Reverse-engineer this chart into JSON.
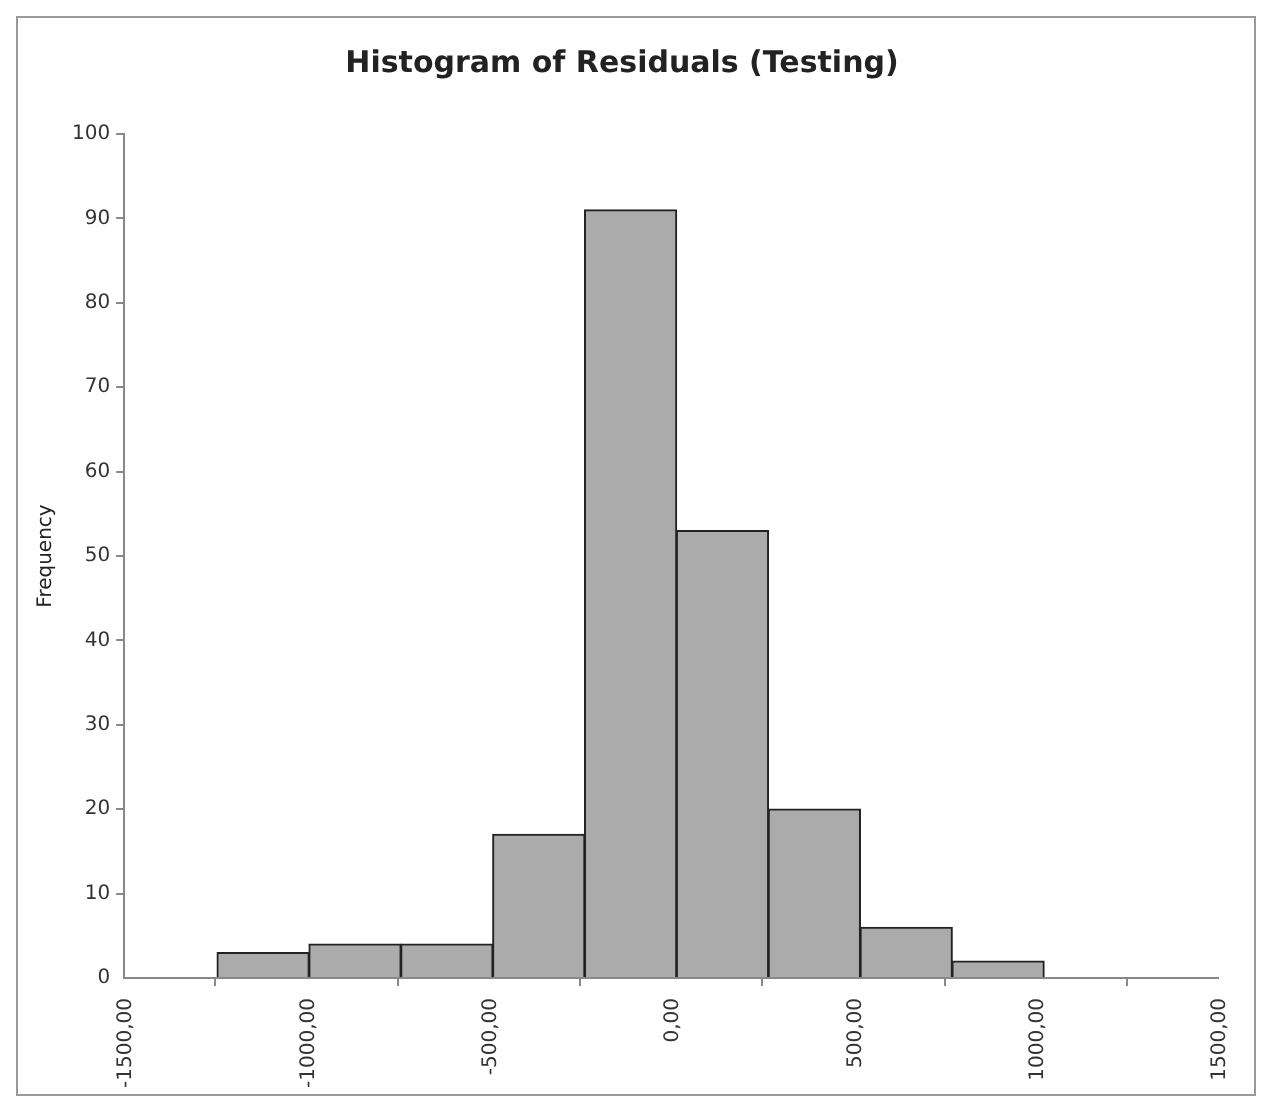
{
  "chart_data": {
    "type": "histogram",
    "title": "Histogram of Residuals (Testing)",
    "ylabel": "Frequency",
    "bins": [
      -1245,
      -993,
      -741,
      -489,
      -237,
      15,
      267,
      519,
      771,
      1023
    ],
    "values": [
      3,
      4,
      4,
      17,
      91,
      53,
      20,
      6,
      2
    ],
    "color": "#ababab",
    "xlim": [
      -1500,
      1500
    ],
    "xticks": [
      {
        "value": -1500,
        "label": "-1500,00"
      },
      {
        "value": -1000,
        "label": "-1000,00"
      },
      {
        "value": -500,
        "label": "-500,00"
      },
      {
        "value": 0,
        "label": "0,00"
      },
      {
        "value": 500,
        "label": "500,00"
      },
      {
        "value": 1000,
        "label": "1000,00"
      },
      {
        "value": 1500,
        "label": "1500,00"
      }
    ],
    "ylim": [
      0,
      100
    ],
    "yticks": [
      0,
      10,
      20,
      30,
      40,
      50,
      60,
      70,
      80,
      90,
      100
    ],
    "grid": false,
    "legend": false
  }
}
